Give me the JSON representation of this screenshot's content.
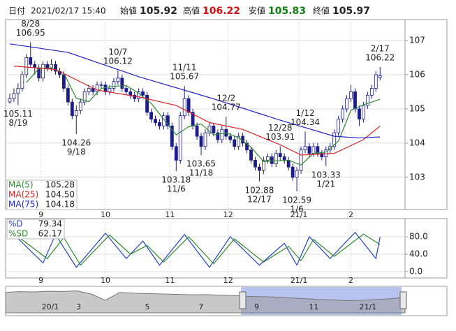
{
  "header": {
    "date_label": "日付",
    "datetime": "2021/02/17 15:40",
    "open_label": "始値",
    "open": 105.92,
    "high_label": "高値",
    "high": 106.22,
    "low_label": "安値",
    "low": 105.83,
    "close_label": "終値",
    "close": 105.97
  },
  "chart_data": [
    {
      "type": "candlestick",
      "xlim": [
        -1,
        95
      ],
      "ylim": [
        102.06,
        107.61
      ],
      "yticks": [
        103,
        104,
        105,
        106,
        107
      ],
      "grid": true,
      "xticks": [
        {
          "value": 7.5,
          "label": "9"
        },
        {
          "value": 23,
          "label": "10"
        },
        {
          "value": 38.5,
          "label": "11"
        },
        {
          "value": 52.5,
          "label": "12"
        },
        {
          "value": 69.5,
          "label": "21/1"
        },
        {
          "value": 82,
          "label": "2"
        }
      ],
      "up_color": "#ffffff",
      "down_color": "#1c1c8a",
      "candles": [
        [
          105.2,
          105.45,
          105.15,
          105.3
        ],
        [
          105.3,
          105.6,
          105.2,
          105.45
        ],
        [
          105.45,
          105.75,
          105.11,
          105.6
        ],
        [
          105.6,
          106.1,
          105.5,
          106.0
        ],
        [
          106.0,
          106.6,
          105.9,
          106.5
        ],
        [
          106.5,
          106.95,
          106.2,
          106.3
        ],
        [
          106.3,
          106.4,
          106.0,
          106.2
        ],
        [
          106.2,
          106.3,
          105.8,
          105.9
        ],
        [
          105.9,
          106.4,
          105.8,
          106.3
        ],
        [
          106.3,
          106.4,
          106.1,
          106.2
        ],
        [
          106.2,
          106.45,
          106.1,
          106.3
        ],
        [
          106.3,
          106.4,
          106.0,
          106.1
        ],
        [
          106.1,
          106.2,
          105.9,
          106.0
        ],
        [
          106.0,
          106.1,
          105.5,
          105.6
        ],
        [
          105.6,
          105.7,
          105.1,
          105.2
        ],
        [
          105.2,
          105.3,
          104.7,
          104.8
        ],
        [
          104.8,
          105.1,
          104.26,
          104.95
        ],
        [
          104.95,
          105.3,
          104.85,
          105.2
        ],
        [
          105.2,
          105.6,
          105.1,
          105.5
        ],
        [
          105.5,
          105.7,
          105.4,
          105.6
        ],
        [
          105.6,
          105.7,
          105.4,
          105.5
        ],
        [
          105.5,
          105.8,
          105.4,
          105.7
        ],
        [
          105.7,
          105.8,
          105.6,
          105.7
        ],
        [
          105.7,
          105.8,
          105.4,
          105.5
        ],
        [
          105.5,
          105.7,
          105.4,
          105.6
        ],
        [
          105.6,
          105.9,
          105.5,
          105.8
        ],
        [
          105.8,
          106.12,
          105.7,
          105.9
        ],
        [
          105.9,
          106.0,
          105.5,
          105.6
        ],
        [
          105.6,
          105.7,
          105.4,
          105.5
        ],
        [
          105.5,
          105.6,
          105.3,
          105.4
        ],
        [
          105.4,
          105.5,
          105.2,
          105.3
        ],
        [
          105.3,
          105.6,
          105.2,
          105.5
        ],
        [
          105.5,
          105.6,
          105.3,
          105.4
        ],
        [
          105.4,
          105.5,
          104.8,
          104.9
        ],
        [
          104.9,
          105.0,
          104.6,
          104.7
        ],
        [
          104.7,
          104.8,
          104.5,
          104.6
        ],
        [
          104.6,
          104.7,
          104.4,
          104.5
        ],
        [
          104.5,
          104.9,
          104.4,
          104.8
        ],
        [
          104.8,
          104.9,
          104.4,
          104.5
        ],
        [
          104.5,
          104.6,
          103.8,
          103.9
        ],
        [
          103.9,
          104.0,
          103.18,
          103.5
        ],
        [
          103.5,
          104.9,
          103.4,
          104.8
        ],
        [
          104.8,
          105.67,
          104.7,
          105.3
        ],
        [
          105.3,
          105.4,
          104.8,
          104.9
        ],
        [
          104.9,
          105.0,
          104.4,
          104.5
        ],
        [
          104.5,
          104.6,
          104.1,
          104.2
        ],
        [
          104.2,
          104.3,
          103.65,
          103.9
        ],
        [
          103.9,
          104.4,
          103.8,
          104.3
        ],
        [
          104.3,
          104.6,
          104.2,
          104.5
        ],
        [
          104.5,
          104.6,
          104.2,
          104.3
        ],
        [
          104.3,
          104.4,
          104.0,
          104.1
        ],
        [
          104.1,
          104.5,
          104.0,
          104.4
        ],
        [
          104.4,
          104.77,
          104.1,
          104.2
        ],
        [
          104.2,
          104.3,
          104.0,
          104.1
        ],
        [
          104.1,
          104.2,
          103.8,
          103.9
        ],
        [
          103.9,
          104.3,
          103.8,
          104.2
        ],
        [
          104.2,
          104.3,
          103.9,
          104.0
        ],
        [
          104.0,
          104.1,
          103.7,
          103.8
        ],
        [
          103.8,
          103.9,
          103.4,
          103.5
        ],
        [
          103.5,
          103.6,
          103.2,
          103.3
        ],
        [
          103.3,
          103.4,
          102.88,
          103.2
        ],
        [
          103.2,
          103.6,
          103.1,
          103.5
        ],
        [
          103.5,
          103.7,
          103.4,
          103.6
        ],
        [
          103.6,
          103.7,
          103.3,
          103.4
        ],
        [
          103.4,
          103.8,
          103.3,
          103.7
        ],
        [
          103.7,
          103.91,
          103.5,
          103.6
        ],
        [
          103.6,
          103.7,
          103.4,
          103.5
        ],
        [
          103.5,
          103.6,
          103.2,
          103.3
        ],
        [
          103.3,
          103.4,
          102.9,
          103.0
        ],
        [
          103.0,
          103.3,
          102.59,
          103.2
        ],
        [
          103.2,
          103.9,
          103.1,
          103.8
        ],
        [
          103.8,
          104.34,
          103.7,
          103.9
        ],
        [
          103.9,
          104.0,
          103.6,
          103.7
        ],
        [
          103.7,
          104.0,
          103.6,
          103.9
        ],
        [
          103.9,
          104.0,
          103.6,
          103.7
        ],
        [
          103.7,
          103.8,
          103.5,
          103.6
        ],
        [
          103.6,
          103.9,
          103.33,
          103.8
        ],
        [
          103.8,
          104.0,
          103.7,
          103.9
        ],
        [
          103.9,
          104.4,
          103.8,
          104.3
        ],
        [
          104.3,
          104.8,
          104.2,
          104.7
        ],
        [
          104.7,
          105.1,
          104.6,
          105.0
        ],
        [
          105.0,
          105.4,
          104.9,
          105.3
        ],
        [
          105.3,
          105.7,
          105.2,
          105.5
        ],
        [
          105.5,
          105.6,
          104.9,
          105.0
        ],
        [
          105.0,
          105.1,
          104.5,
          104.7
        ],
        [
          104.7,
          105.2,
          104.6,
          105.1
        ],
        [
          105.1,
          105.5,
          105.0,
          105.4
        ],
        [
          105.4,
          105.7,
          105.3,
          105.6
        ],
        [
          105.6,
          106.1,
          105.5,
          106.0
        ],
        [
          105.92,
          106.22,
          105.83,
          105.97
        ]
      ],
      "series": [
        {
          "name": "MA(5)",
          "color": "#2e8b2e",
          "legend_value": 105.28,
          "x": [
            4,
            7,
            10,
            13,
            16,
            19,
            22,
            25,
            28,
            31,
            34,
            37,
            40,
            43,
            46,
            49,
            52,
            55,
            58,
            61,
            64,
            67,
            70,
            73,
            76,
            79,
            82,
            85,
            89
          ],
          "values": [
            105.77,
            106.18,
            106.18,
            106.04,
            105.31,
            105.21,
            105.6,
            105.66,
            105.68,
            105.46,
            105.16,
            104.7,
            104.24,
            104.48,
            104.56,
            104.24,
            104.3,
            104.16,
            103.88,
            103.46,
            103.48,
            103.5,
            103.36,
            103.7,
            103.74,
            104.06,
            104.96,
            105.12,
            105.28
          ]
        },
        {
          "name": "MA(25)",
          "color": "#e02020",
          "legend_value": {
            "value": 104.5,
            "label": "104.50"
          },
          "x": [
            1,
            11,
            21,
            31,
            40,
            48,
            56,
            65,
            70,
            78,
            85,
            89
          ],
          "values": [
            106.25,
            106.15,
            105.55,
            105.35,
            105.1,
            104.6,
            104.4,
            103.95,
            103.65,
            103.7,
            104.1,
            104.5
          ]
        },
        {
          "name": "MA(75)",
          "color": "#2020d0",
          "legend_value": 104.18,
          "x": [
            0,
            14,
            31,
            48,
            65,
            78,
            84,
            89
          ],
          "values": [
            106.9,
            106.65,
            105.94,
            105.33,
            104.67,
            104.2,
            104.15,
            104.18
          ]
        }
      ],
      "annotations": [
        {
          "date": "8/28",
          "value": 106.95,
          "x": 5,
          "pos": "above"
        },
        {
          "date": "8/19",
          "value": 105.11,
          "x": 2,
          "pos": "below"
        },
        {
          "date": "9/18",
          "value": 104.26,
          "x": 16,
          "pos": "below"
        },
        {
          "date": "10/7",
          "value": 106.12,
          "x": 26,
          "pos": "above"
        },
        {
          "date": "11/6",
          "value": 103.18,
          "x": 40,
          "pos": "below"
        },
        {
          "date": "11/11",
          "value": 105.67,
          "x": 42,
          "pos": "above"
        },
        {
          "date": "11/18",
          "value": 103.65,
          "x": 46,
          "pos": "below"
        },
        {
          "date": "12/2",
          "value": 104.77,
          "x": 52,
          "pos": "above"
        },
        {
          "date": "12/17",
          "value": 102.88,
          "x": 60,
          "pos": "below"
        },
        {
          "date": "12/28",
          "value": 103.91,
          "x": 65,
          "pos": "above"
        },
        {
          "date": "1/6",
          "value": 102.59,
          "x": 69,
          "pos": "below"
        },
        {
          "date": "1/12",
          "value": 104.34,
          "x": 71,
          "pos": "above"
        },
        {
          "date": "1/21",
          "value": 103.33,
          "x": 76,
          "pos": "below"
        },
        {
          "date": "2/17",
          "value": 106.22,
          "x": 89,
          "pos": "above"
        }
      ]
    },
    {
      "type": "line",
      "xlim": [
        -1,
        95
      ],
      "ylim": [
        -14.4,
        121.6
      ],
      "grid": true,
      "yticks": [
        {
          "value": 80,
          "label": "80.0"
        },
        {
          "value": 40,
          "label": "40.0"
        },
        {
          "value": 0,
          "label": "0.0"
        }
      ],
      "xticks": [
        {
          "value": 7.5,
          "label": "9"
        },
        {
          "value": 23,
          "label": "10"
        },
        {
          "value": 38.5,
          "label": "11"
        },
        {
          "value": 52.5,
          "label": "12"
        },
        {
          "value": 69.5,
          "label": "21/1"
        },
        {
          "value": 82,
          "label": "2"
        }
      ],
      "series": [
        {
          "name": "%D",
          "color": "#2040d0",
          "legend_value": 79.34,
          "x": [
            1,
            8,
            11,
            16,
            23,
            28,
            32,
            36,
            42,
            48,
            53,
            60,
            66,
            69,
            72,
            77,
            83,
            88,
            89
          ],
          "values": [
            85,
            20,
            85,
            10,
            88,
            30,
            70,
            15,
            85,
            10,
            80,
            15,
            65,
            15,
            80,
            30,
            90,
            30,
            79.34
          ]
        },
        {
          "name": "%SD",
          "color": "#2e8b2e",
          "legend_value": 62.17,
          "x": [
            2,
            9,
            13,
            17,
            24,
            29,
            33,
            37,
            43,
            49,
            54,
            61,
            67,
            70,
            73,
            78,
            85,
            89
          ],
          "values": [
            80,
            30,
            78,
            15,
            84,
            40,
            60,
            22,
            80,
            18,
            75,
            22,
            58,
            25,
            74,
            35,
            86,
            62.17
          ]
        }
      ]
    },
    {
      "type": "area",
      "xlim": [
        0,
        28
      ],
      "ylim": [
        96,
        112
      ],
      "color": "#9a9a9a",
      "xticks": [
        {
          "value": 3.13,
          "label": "20/1"
        },
        {
          "value": 5.12,
          "label": "3"
        },
        {
          "value": 9.94,
          "label": "5"
        },
        {
          "value": 13.7,
          "label": "7"
        },
        {
          "value": 17.6,
          "label": "9"
        },
        {
          "value": 21.6,
          "label": "11"
        },
        {
          "value": 25.4,
          "label": "21/1"
        }
      ],
      "x": [
        0,
        1,
        2,
        3,
        4,
        5,
        6,
        7,
        8,
        9,
        10,
        11,
        12,
        13,
        14,
        15,
        16,
        17,
        18,
        19,
        20,
        21,
        22,
        23,
        24,
        25,
        26,
        27,
        28
      ],
      "values": [
        109,
        109.5,
        109.3,
        109.8,
        109.6,
        110,
        108,
        104,
        109,
        108.5,
        108.2,
        108,
        107.8,
        107.5,
        107.6,
        107.3,
        107,
        106.5,
        106.3,
        106,
        105.5,
        105,
        104.5,
        104.2,
        103.8,
        104,
        104.5,
        105,
        106
      ]
    }
  ]
}
